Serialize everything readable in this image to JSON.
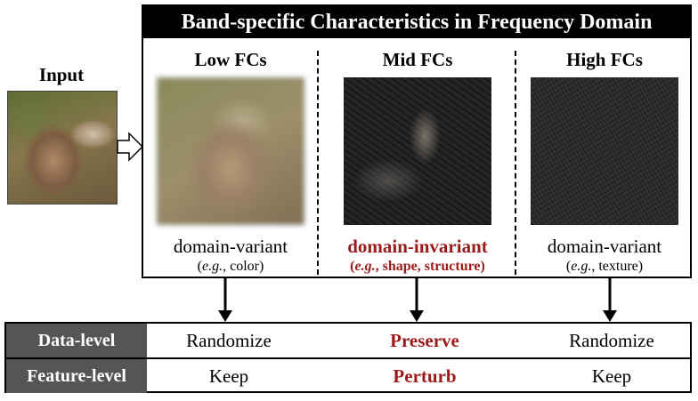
{
  "input": {
    "label": "Input"
  },
  "panel": {
    "title": "Band-specific Characteristics in Frequency Domain"
  },
  "bands": [
    {
      "title": "Low FCs",
      "description": "domain-variant",
      "example_prefix": "e.g.",
      "example_suffix": ", color)"
    },
    {
      "title": "Mid FCs",
      "description": "domain-invariant",
      "example_prefix": "e.g.",
      "example_suffix": ", shape, structure)"
    },
    {
      "title": "High FCs",
      "description": "domain-variant",
      "example_prefix": "e.g.",
      "example_suffix": ", texture)"
    }
  ],
  "table": {
    "rows": [
      {
        "header": "Data-level",
        "low": "Randomize",
        "mid": "Preserve",
        "high": "Randomize"
      },
      {
        "header": "Feature-level",
        "low": "Keep",
        "mid": "Perturb",
        "high": "Keep"
      }
    ]
  },
  "colors": {
    "highlight": "#9b1b1b",
    "title_bar": "#000000",
    "row_header": "#555555"
  }
}
